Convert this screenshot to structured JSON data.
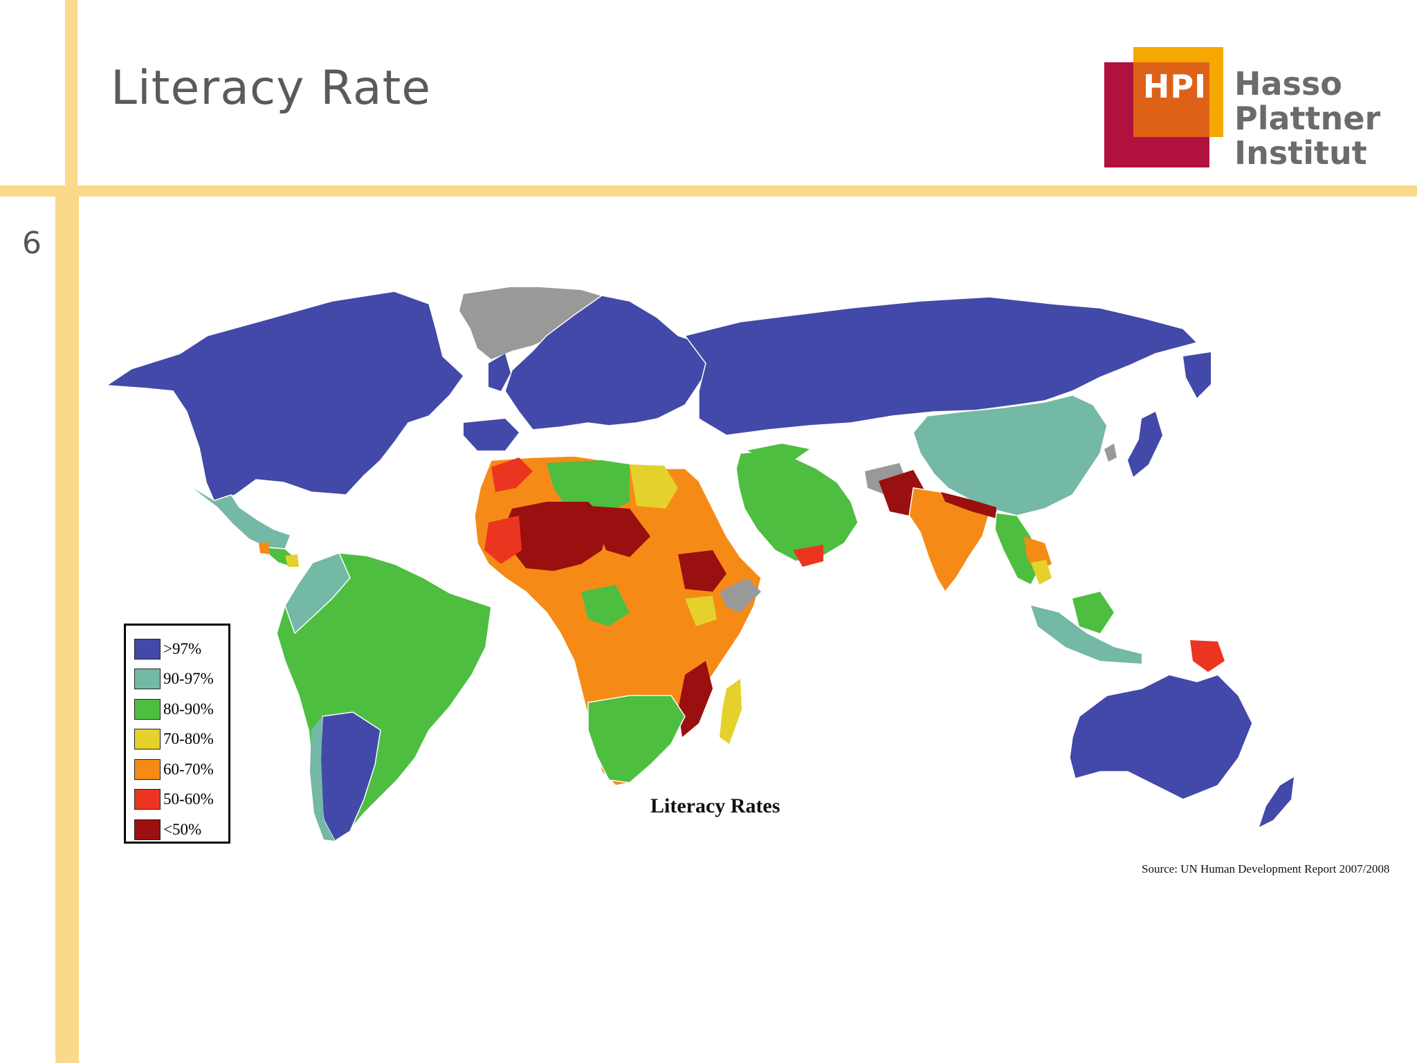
{
  "slide": {
    "title": "Literacy Rate",
    "page_number": "6"
  },
  "logo": {
    "mark": "HPI",
    "line1": "Hasso",
    "line2": "Plattner",
    "line3": "Institut",
    "colors": {
      "crimson": "#b0113f",
      "orange": "#dd6217",
      "yellow": "#f6a800"
    }
  },
  "map": {
    "title": "Literacy Rates",
    "source": "Source: UN Human Development Report 2007/2008",
    "no_data_color": "#999999",
    "legend": [
      {
        "label": ">97%",
        "color": "#4349a8"
      },
      {
        "label": "90-97%",
        "color": "#73b9a5"
      },
      {
        "label": "80-90%",
        "color": "#4dbe40"
      },
      {
        "label": "70-80%",
        "color": "#e4d12c"
      },
      {
        "label": "60-70%",
        "color": "#f58b16"
      },
      {
        "label": "50-60%",
        "color": "#ec3520"
      },
      {
        "label": "<50%",
        "color": "#9a0f0f"
      }
    ]
  },
  "theme": {
    "accent_bar": "#fbd98a",
    "title_text": "#5a5a5a"
  }
}
